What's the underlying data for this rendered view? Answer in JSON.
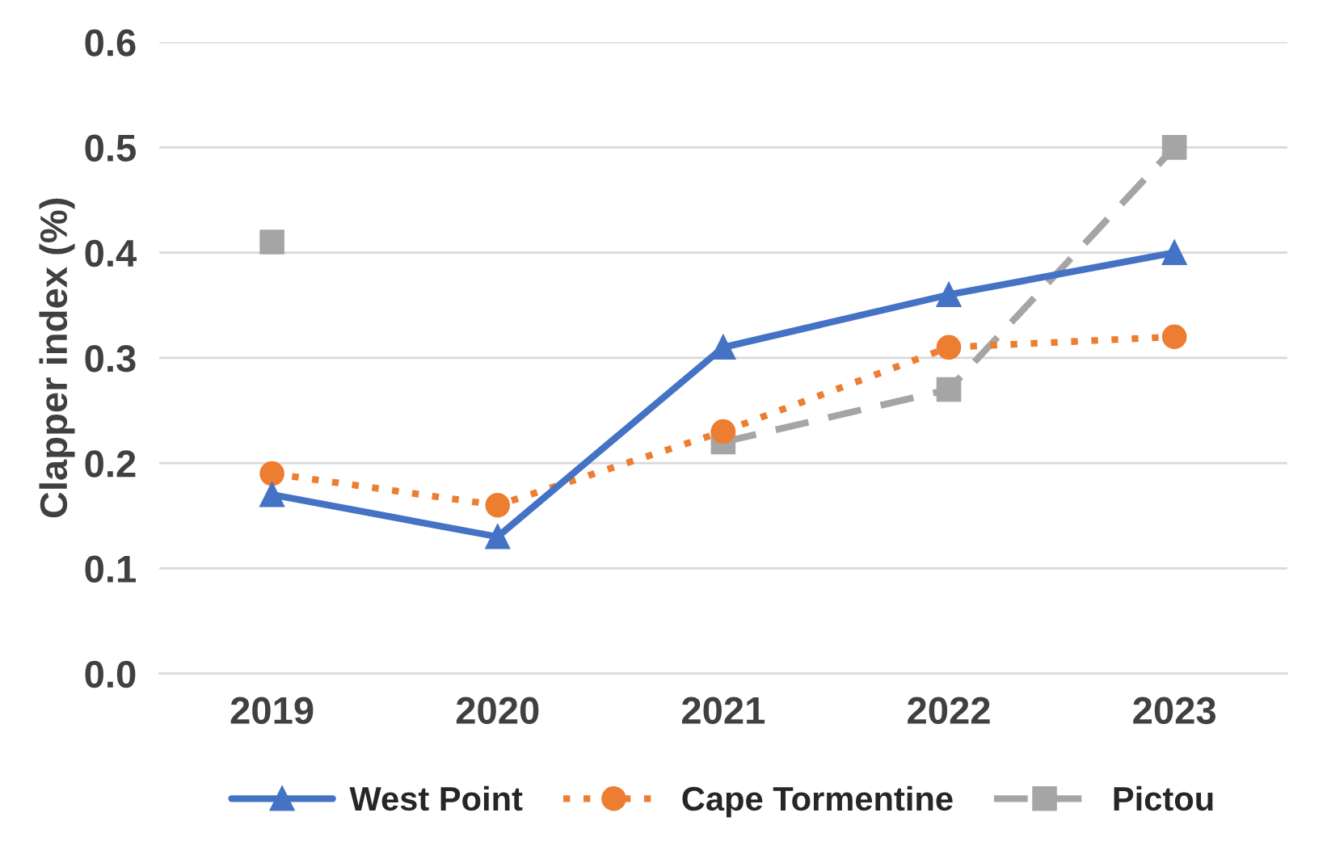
{
  "chart_data": {
    "type": "line",
    "ylabel": "Clapper index (%)",
    "categories": [
      "2019",
      "2020",
      "2021",
      "2022",
      "2023"
    ],
    "series": [
      {
        "name": "West Point",
        "color": "#4472c4",
        "marker": "triangle",
        "line_style": "solid",
        "values": [
          0.17,
          0.13,
          0.31,
          0.36,
          0.4
        ]
      },
      {
        "name": "Cape Tormentine",
        "color": "#ed7d31",
        "marker": "circle",
        "line_style": "dotted",
        "values": [
          0.19,
          0.16,
          0.23,
          0.31,
          0.32
        ]
      },
      {
        "name": "Pictou",
        "color": "#a5a5a5",
        "marker": "square",
        "line_style": "dashed",
        "values": [
          0.41,
          null,
          0.22,
          0.27,
          0.5
        ]
      }
    ],
    "ylim": [
      0,
      0.6
    ],
    "yticks": [
      {
        "value": 0,
        "label": "0.0"
      },
      0.1,
      0.2,
      0.3,
      0.4,
      0.5,
      0.6
    ],
    "grid": "y",
    "legend": "bottom"
  }
}
